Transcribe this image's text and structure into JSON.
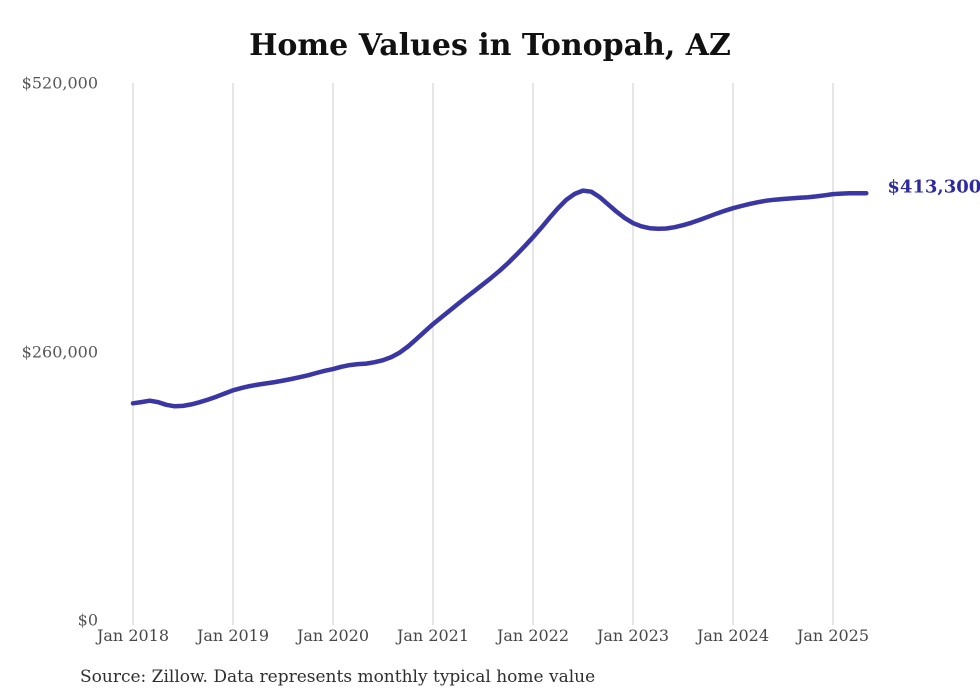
{
  "source_note": "Source: Zillow. Data represents monthly typical home value",
  "colors": {
    "line": "#3a36a4",
    "end_label": "#2d2b9f",
    "grid": "#cccccc",
    "title": "#111111",
    "y_tick_text": "#565656",
    "x_tick_text": "#474747",
    "source_text": "#2e2e2e",
    "background": "#ffffff"
  },
  "chart_data": {
    "type": "line",
    "title": "Home Values in Tonopah, AZ",
    "xlabel": "",
    "ylabel": "",
    "ylim": [
      0,
      520000
    ],
    "grid": "vertical-only",
    "legend": "none",
    "end_value_label": "$413,300",
    "x_tick_labels": [
      "Jan 2018",
      "Jan 2019",
      "Jan 2020",
      "Jan 2021",
      "Jan 2022",
      "Jan 2023",
      "Jan 2024",
      "Jan 2025"
    ],
    "y_ticks": [
      {
        "label": "$0",
        "value": 0
      },
      {
        "label": "$260,000",
        "value": 260000
      },
      {
        "label": "$520,000",
        "value": 520000
      }
    ],
    "series": [
      {
        "name": "Monthly typical home value",
        "unit": "USD",
        "start": "Jan 2018",
        "frequency": "monthly",
        "values": [
          209800,
          211000,
          212400,
          211000,
          208400,
          206900,
          207300,
          208800,
          210900,
          213400,
          216200,
          219300,
          222400,
          224600,
          226500,
          227900,
          229100,
          230400,
          231800,
          233400,
          235100,
          237000,
          239200,
          241300,
          243000,
          245200,
          246800,
          247800,
          248300,
          249600,
          251600,
          254600,
          258900,
          264800,
          271900,
          279300,
          286500,
          293000,
          299600,
          306100,
          312500,
          318800,
          325100,
          331500,
          338200,
          345600,
          353500,
          362000,
          370700,
          379800,
          389600,
          398800,
          406900,
          412600,
          415800,
          414700,
          409500,
          402500,
          395600,
          389300,
          384300,
          381200,
          379400,
          378900,
          379100,
          380400,
          382300,
          384600,
          387400,
          390400,
          393400,
          396200,
          398800,
          400900,
          402900,
          404600,
          406000,
          407000,
          407700,
          408300,
          408800,
          409400,
          410200,
          411300,
          412400,
          412900,
          413200,
          413300,
          413300
        ]
      }
    ]
  }
}
